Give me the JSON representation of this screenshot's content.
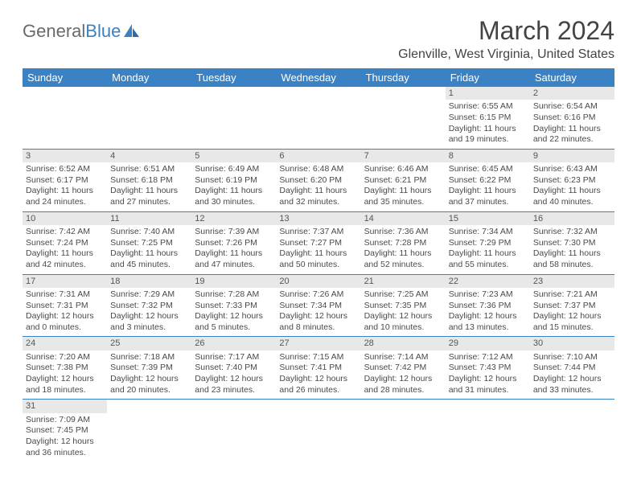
{
  "logo": {
    "part1": "General",
    "part2": "Blue"
  },
  "title": "March 2024",
  "location": "Glenville, West Virginia, United States",
  "dayHeaders": [
    "Sunday",
    "Monday",
    "Tuesday",
    "Wednesday",
    "Thursday",
    "Friday",
    "Saturday"
  ],
  "colors": {
    "header_bg": "#3b82c4",
    "header_text": "#ffffff",
    "daynum_bg": "#e8e8e8",
    "border": "#3b82c4",
    "text": "#4a4a4a",
    "logo_gray": "#6a6a6a",
    "logo_blue": "#3b7fc4"
  },
  "fonts": {
    "title_size": 32,
    "subtitle_size": 16,
    "dayheader_size": 13,
    "cell_size": 10.5
  },
  "firstWeekday": 5,
  "daysInMonth": 31,
  "days": {
    "1": {
      "sunrise": "6:55 AM",
      "sunset": "6:15 PM",
      "daylight": "11 hours and 19 minutes."
    },
    "2": {
      "sunrise": "6:54 AM",
      "sunset": "6:16 PM",
      "daylight": "11 hours and 22 minutes."
    },
    "3": {
      "sunrise": "6:52 AM",
      "sunset": "6:17 PM",
      "daylight": "11 hours and 24 minutes."
    },
    "4": {
      "sunrise": "6:51 AM",
      "sunset": "6:18 PM",
      "daylight": "11 hours and 27 minutes."
    },
    "5": {
      "sunrise": "6:49 AM",
      "sunset": "6:19 PM",
      "daylight": "11 hours and 30 minutes."
    },
    "6": {
      "sunrise": "6:48 AM",
      "sunset": "6:20 PM",
      "daylight": "11 hours and 32 minutes."
    },
    "7": {
      "sunrise": "6:46 AM",
      "sunset": "6:21 PM",
      "daylight": "11 hours and 35 minutes."
    },
    "8": {
      "sunrise": "6:45 AM",
      "sunset": "6:22 PM",
      "daylight": "11 hours and 37 minutes."
    },
    "9": {
      "sunrise": "6:43 AM",
      "sunset": "6:23 PM",
      "daylight": "11 hours and 40 minutes."
    },
    "10": {
      "sunrise": "7:42 AM",
      "sunset": "7:24 PM",
      "daylight": "11 hours and 42 minutes."
    },
    "11": {
      "sunrise": "7:40 AM",
      "sunset": "7:25 PM",
      "daylight": "11 hours and 45 minutes."
    },
    "12": {
      "sunrise": "7:39 AM",
      "sunset": "7:26 PM",
      "daylight": "11 hours and 47 minutes."
    },
    "13": {
      "sunrise": "7:37 AM",
      "sunset": "7:27 PM",
      "daylight": "11 hours and 50 minutes."
    },
    "14": {
      "sunrise": "7:36 AM",
      "sunset": "7:28 PM",
      "daylight": "11 hours and 52 minutes."
    },
    "15": {
      "sunrise": "7:34 AM",
      "sunset": "7:29 PM",
      "daylight": "11 hours and 55 minutes."
    },
    "16": {
      "sunrise": "7:32 AM",
      "sunset": "7:30 PM",
      "daylight": "11 hours and 58 minutes."
    },
    "17": {
      "sunrise": "7:31 AM",
      "sunset": "7:31 PM",
      "daylight": "12 hours and 0 minutes."
    },
    "18": {
      "sunrise": "7:29 AM",
      "sunset": "7:32 PM",
      "daylight": "12 hours and 3 minutes."
    },
    "19": {
      "sunrise": "7:28 AM",
      "sunset": "7:33 PM",
      "daylight": "12 hours and 5 minutes."
    },
    "20": {
      "sunrise": "7:26 AM",
      "sunset": "7:34 PM",
      "daylight": "12 hours and 8 minutes."
    },
    "21": {
      "sunrise": "7:25 AM",
      "sunset": "7:35 PM",
      "daylight": "12 hours and 10 minutes."
    },
    "22": {
      "sunrise": "7:23 AM",
      "sunset": "7:36 PM",
      "daylight": "12 hours and 13 minutes."
    },
    "23": {
      "sunrise": "7:21 AM",
      "sunset": "7:37 PM",
      "daylight": "12 hours and 15 minutes."
    },
    "24": {
      "sunrise": "7:20 AM",
      "sunset": "7:38 PM",
      "daylight": "12 hours and 18 minutes."
    },
    "25": {
      "sunrise": "7:18 AM",
      "sunset": "7:39 PM",
      "daylight": "12 hours and 20 minutes."
    },
    "26": {
      "sunrise": "7:17 AM",
      "sunset": "7:40 PM",
      "daylight": "12 hours and 23 minutes."
    },
    "27": {
      "sunrise": "7:15 AM",
      "sunset": "7:41 PM",
      "daylight": "12 hours and 26 minutes."
    },
    "28": {
      "sunrise": "7:14 AM",
      "sunset": "7:42 PM",
      "daylight": "12 hours and 28 minutes."
    },
    "29": {
      "sunrise": "7:12 AM",
      "sunset": "7:43 PM",
      "daylight": "12 hours and 31 minutes."
    },
    "30": {
      "sunrise": "7:10 AM",
      "sunset": "7:44 PM",
      "daylight": "12 hours and 33 minutes."
    },
    "31": {
      "sunrise": "7:09 AM",
      "sunset": "7:45 PM",
      "daylight": "12 hours and 36 minutes."
    }
  },
  "labels": {
    "sunrise": "Sunrise: ",
    "sunset": "Sunset: ",
    "daylight": "Daylight: "
  }
}
